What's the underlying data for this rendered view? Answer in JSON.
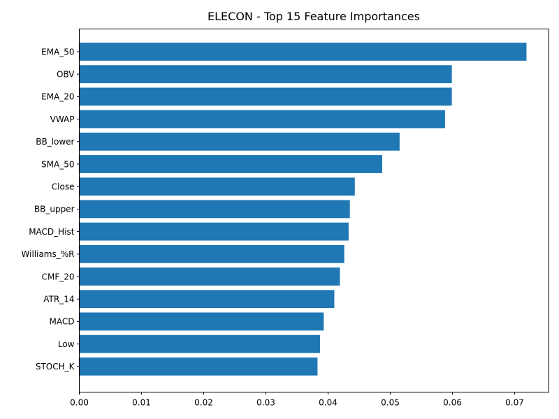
{
  "chart_data": {
    "type": "bar",
    "orientation": "horizontal",
    "title": "ELECON - Top 15 Feature Importances",
    "xlabel": "",
    "ylabel": "",
    "categories": [
      "EMA_50",
      "OBV",
      "EMA_20",
      "VWAP",
      "BB_lower",
      "SMA_50",
      "Close",
      "BB_upper",
      "MACD_Hist",
      "Williams_%R",
      "CMF_20",
      "ATR_14",
      "MACD",
      "Low",
      "STOCH_K"
    ],
    "values": [
      0.0719,
      0.0599,
      0.0599,
      0.0588,
      0.0515,
      0.0487,
      0.0443,
      0.0435,
      0.0433,
      0.0426,
      0.0419,
      0.041,
      0.0393,
      0.0387,
      0.0383
    ],
    "xlim": [
      0,
      0.0755
    ],
    "xticks": [
      0.0,
      0.01,
      0.02,
      0.03,
      0.04,
      0.05,
      0.06,
      0.07
    ],
    "xtick_labels": [
      "0.00",
      "0.01",
      "0.02",
      "0.03",
      "0.04",
      "0.05",
      "0.06",
      "0.07"
    ],
    "grid": false,
    "bar_color": "#1f77b4"
  }
}
